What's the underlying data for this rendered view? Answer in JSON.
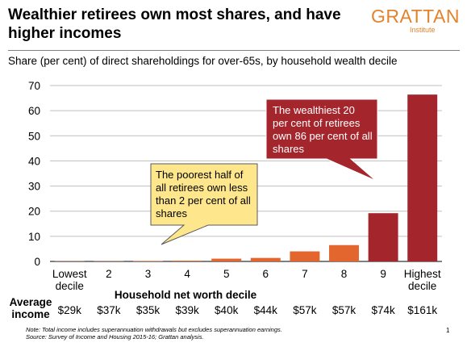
{
  "header": {
    "title": "Wealthier retirees own most shares, and have higher incomes",
    "logo_main": "GRATTAN",
    "logo_sub": "Institute",
    "subtitle": "Share (per cent) of direct shareholdings for over-65s, by household wealth decile",
    "page_number": "1"
  },
  "chart_data": {
    "type": "bar",
    "categories": [
      "Lowest decile",
      "2",
      "3",
      "4",
      "5",
      "6",
      "7",
      "8",
      "9",
      "Highest decile"
    ],
    "values": [
      0.1,
      0.1,
      0.2,
      0.3,
      1.1,
      1.4,
      4.0,
      6.5,
      19.2,
      66.4
    ],
    "bar_colors": [
      "#e3662e",
      "#e3662e",
      "#e3662e",
      "#e3662e",
      "#e3662e",
      "#e3662e",
      "#e3662e",
      "#e3662e",
      "#a4262c",
      "#a4262c"
    ],
    "xlabel": "Household net worth decile",
    "ylabel": "",
    "ylim": [
      0,
      70
    ],
    "yticks": [
      0,
      10,
      20,
      30,
      40,
      50,
      60,
      70
    ],
    "grid": true
  },
  "income_row": {
    "label": "Average income",
    "values": [
      "$29k",
      "$37k",
      "$35k",
      "$39k",
      "$40k",
      "$44k",
      "$57k",
      "$57k",
      "$74k",
      "$161k"
    ]
  },
  "callouts": {
    "wealthy": "The wealthiest 20 per cent of retirees own 86 per cent of all shares",
    "poor": "The poorest half of all retirees own less than 2 per cent of all shares",
    "wealthy_color": "#a4262c",
    "poor_color": "#fde68b"
  },
  "notes": {
    "line1": "Note: Total income includes superannuation withdrawals but excludes superannuation earnings.",
    "line2": "Source: Survey of Income and Housing 2015-16; Grattan analysis."
  }
}
